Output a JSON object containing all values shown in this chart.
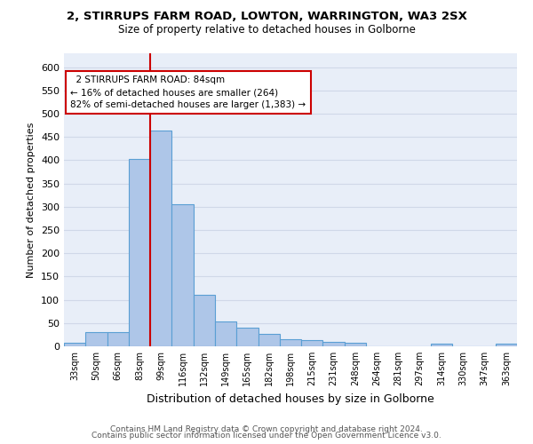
{
  "title1": "2, STIRRUPS FARM ROAD, LOWTON, WARRINGTON, WA3 2SX",
  "title2": "Size of property relative to detached houses in Golborne",
  "xlabel": "Distribution of detached houses by size in Golborne",
  "ylabel": "Number of detached properties",
  "footer1": "Contains HM Land Registry data © Crown copyright and database right 2024.",
  "footer2": "Contains public sector information licensed under the Open Government Licence v3.0.",
  "bin_labels": [
    "33sqm",
    "50sqm",
    "66sqm",
    "83sqm",
    "99sqm",
    "116sqm",
    "132sqm",
    "149sqm",
    "165sqm",
    "182sqm",
    "198sqm",
    "215sqm",
    "231sqm",
    "248sqm",
    "264sqm",
    "281sqm",
    "297sqm",
    "314sqm",
    "330sqm",
    "347sqm",
    "363sqm"
  ],
  "bar_values": [
    7,
    30,
    30,
    403,
    463,
    305,
    110,
    53,
    40,
    27,
    15,
    13,
    10,
    7,
    0,
    0,
    0,
    5,
    0,
    0,
    5
  ],
  "bar_color": "#aec6e8",
  "bar_edge_color": "#5a9fd4",
  "vline_x_index": 3,
  "vline_color": "#cc0000",
  "annotation_text": "  2 STIRRUPS FARM ROAD: 84sqm\n← 16% of detached houses are smaller (264)\n82% of semi-detached houses are larger (1,383) →",
  "annotation_box_color": "#cc0000",
  "ylim": [
    0,
    630
  ],
  "yticks": [
    0,
    50,
    100,
    150,
    200,
    250,
    300,
    350,
    400,
    450,
    500,
    550,
    600
  ],
  "grid_color": "#d0d8e8",
  "bg_color": "#e8eef8",
  "title1_fontsize": 9.5,
  "title2_fontsize": 8.5
}
